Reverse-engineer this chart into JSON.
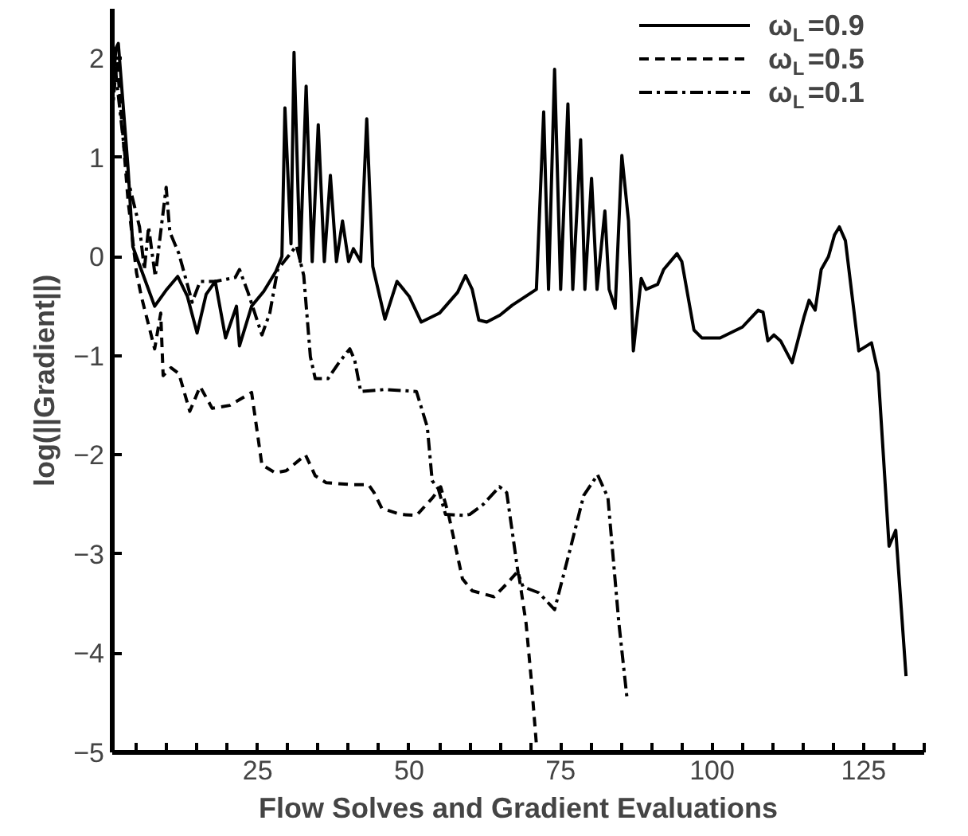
{
  "chart_data": {
    "type": "line",
    "xlabel": "Flow Solves and Gradient Evaluations",
    "ylabel": "log(||Gradient||)",
    "xlim": [
      1,
      135
    ],
    "ylim": [
      -5,
      2.5
    ],
    "xticks": [
      {
        "value": 5,
        "label": null
      },
      {
        "value": 10,
        "label": null
      },
      {
        "value": 15,
        "label": null
      },
      {
        "value": 20,
        "label": null
      },
      25,
      {
        "value": 30,
        "label": null
      },
      {
        "value": 35,
        "label": null
      },
      {
        "value": 40,
        "label": null
      },
      {
        "value": 45,
        "label": null
      },
      50,
      {
        "value": 55,
        "label": null
      },
      {
        "value": 60,
        "label": null
      },
      {
        "value": 65,
        "label": null
      },
      {
        "value": 70,
        "label": null
      },
      75,
      {
        "value": 80,
        "label": null
      },
      {
        "value": 85,
        "label": null
      },
      {
        "value": 90,
        "label": null
      },
      {
        "value": 95,
        "label": null
      },
      100,
      {
        "value": 105,
        "label": null
      },
      {
        "value": 110,
        "label": null
      },
      {
        "value": 115,
        "label": null
      },
      {
        "value": 120,
        "label": null
      },
      125,
      {
        "value": 130,
        "label": null
      },
      {
        "value": 135,
        "label": null
      }
    ],
    "yticks": [
      -5,
      -4,
      -3,
      -2,
      -1,
      0,
      1,
      2
    ],
    "grid": false,
    "legend": "top right",
    "marker": "none",
    "series": [
      {
        "name": "ω$_{L}$=0.9",
        "color": "#000000",
        "line_style": "solid",
        "x": [
          1,
          1.6,
          2,
          3.6,
          4.4,
          6.5,
          8,
          10,
          11.8,
          13.4,
          15,
          16.5,
          18,
          19.7,
          21.5,
          22,
          24,
          26,
          28,
          29,
          29.5,
          30.5,
          31,
          32,
          33,
          34,
          35,
          36,
          37,
          38,
          39,
          40,
          40.8,
          42,
          43,
          44,
          46,
          48,
          50,
          52,
          55,
          58,
          59.3,
          60.4,
          61.5,
          62.8,
          65,
          67,
          71,
          72.2,
          73,
          74,
          75,
          76.2,
          77,
          78.3,
          79,
          80.1,
          81,
          82.3,
          83,
          84,
          85.1,
          86.2,
          87,
          88.3,
          89.1,
          91,
          92,
          94.2,
          95,
          97,
          98.3,
          101.3,
          105,
          107.6,
          108.4,
          109.2,
          110.2,
          111.3,
          113.2,
          115.2,
          116,
          117,
          118,
          119.2,
          120.2,
          121,
          122,
          124.2,
          126.3,
          127.4,
          129.2,
          130.3,
          132
        ],
        "values": [
          1.6,
          2.1,
          2.15,
          0.9,
          0.1,
          -0.25,
          -0.5,
          -0.33,
          -0.2,
          -0.4,
          -0.77,
          -0.38,
          -0.25,
          -0.82,
          -0.5,
          -0.9,
          -0.5,
          -0.35,
          -0.15,
          0,
          1.5,
          0.13,
          2.06,
          -0.05,
          1.72,
          -0.05,
          1.33,
          -0.05,
          0.82,
          -0.05,
          0.36,
          -0.05,
          0.08,
          -0.05,
          1.39,
          -0.1,
          -0.63,
          -0.25,
          -0.4,
          -0.66,
          -0.57,
          -0.36,
          -0.19,
          -0.33,
          -0.64,
          -0.66,
          -0.59,
          -0.49,
          -0.33,
          1.46,
          -0.33,
          1.89,
          -0.33,
          1.54,
          -0.33,
          1.18,
          -0.33,
          0.79,
          -0.33,
          0.46,
          -0.33,
          -0.52,
          1.02,
          0.36,
          -0.95,
          -0.22,
          -0.33,
          -0.28,
          -0.13,
          0.03,
          -0.05,
          -0.74,
          -0.82,
          -0.82,
          -0.71,
          -0.54,
          -0.56,
          -0.85,
          -0.79,
          -0.85,
          -1.07,
          -0.6,
          -0.44,
          -0.54,
          -0.13,
          0,
          0.22,
          0.3,
          0.16,
          -0.95,
          -0.87,
          -1.17,
          -2.92,
          -2.76,
          -4.23
        ]
      },
      {
        "name": "ω$_{L}$=0.5",
        "color": "#000000",
        "line_style": "dashed",
        "x": [
          1,
          1.8,
          3.6,
          5,
          5.8,
          8,
          9,
          9.4,
          10.7,
          12,
          13.8,
          15.5,
          17.5,
          20.4,
          24,
          25.7,
          27.9,
          29.7,
          32.9,
          34.5,
          36.3,
          40.6,
          43.3,
          44.2,
          45.5,
          48.6,
          51.2,
          53.9,
          55.2,
          56.5,
          58.8,
          60.4,
          64,
          66.1,
          68,
          69.3,
          70.1,
          71
        ],
        "values": [
          1.5,
          1.97,
          0.57,
          -0.16,
          -0.4,
          -0.93,
          -0.57,
          -1.2,
          -1.12,
          -1.18,
          -1.56,
          -1.31,
          -1.53,
          -1.5,
          -1.37,
          -2.1,
          -2.18,
          -2.16,
          -2.0,
          -2.21,
          -2.28,
          -2.3,
          -2.3,
          -2.38,
          -2.54,
          -2.6,
          -2.61,
          -2.43,
          -2.32,
          -2.6,
          -3.25,
          -3.37,
          -3.43,
          -3.3,
          -3.17,
          -3.7,
          -4.23,
          -4.92
        ]
      },
      {
        "name": "ω$_{L}$=0.1",
        "color": "#000000",
        "line_style": "dashdot",
        "x": [
          1,
          1.5,
          3.5,
          5.5,
          6.3,
          7,
          8.1,
          9.9,
          10.5,
          12,
          14.2,
          15.5,
          18,
          21.3,
          22,
          23.4,
          25.7,
          27,
          28.3,
          30,
          31.4,
          32.6,
          33.7,
          34.5,
          36.6,
          38.4,
          40.2,
          41,
          42,
          46,
          51.2,
          53,
          53.8,
          54.8,
          56,
          59,
          60,
          62.2,
          64.9,
          66.1,
          68,
          68.8,
          71.4,
          74,
          76.7,
          78.8,
          81.1,
          82.8,
          84.6,
          86
        ],
        "values": [
          1.4,
          1.9,
          0.8,
          0.3,
          -0.13,
          0.3,
          -0.2,
          0.7,
          0.25,
          0.03,
          -0.46,
          -0.25,
          -0.25,
          -0.21,
          -0.13,
          -0.36,
          -0.79,
          -0.57,
          -0.13,
          0,
          0.11,
          -0.19,
          -1.01,
          -1.23,
          -1.23,
          -1.07,
          -0.93,
          -1.04,
          -1.36,
          -1.34,
          -1.36,
          -1.72,
          -2.26,
          -2.34,
          -2.6,
          -2.61,
          -2.6,
          -2.5,
          -2.32,
          -2.38,
          -3.2,
          -3.33,
          -3.39,
          -3.56,
          -2.92,
          -2.41,
          -2.2,
          -2.43,
          -3.69,
          -4.48
        ]
      }
    ]
  }
}
